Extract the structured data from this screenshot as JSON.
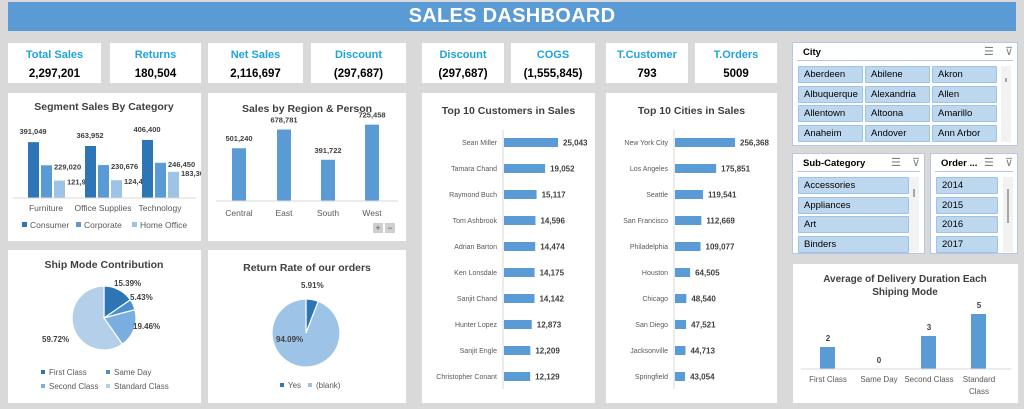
{
  "header": {
    "title": "SALES DASHBOARD"
  },
  "kpis": [
    {
      "label": "Total Sales",
      "value": "2,297,201"
    },
    {
      "label": "Returns",
      "value": "180,504"
    },
    {
      "label": "Net Sales",
      "value": "2,116,697"
    },
    {
      "label": "Discount",
      "value": "(297,687)"
    },
    {
      "label": "Discount",
      "value": "(297,687)"
    },
    {
      "label": "COGS",
      "value": "(1,555,845)"
    },
    {
      "label": "T.Customer",
      "value": "793"
    },
    {
      "label": "T.Orders",
      "value": "5009"
    }
  ],
  "colors": {
    "accent": "#5b9bd5",
    "dark_blue": "#2e75b6",
    "mid_blue": "#5b9bd5",
    "light_blue": "#9dc3e6",
    "kpi_label": "#1fa3dc"
  },
  "chart_data": [
    {
      "id": "segment",
      "type": "bar",
      "title": "Segment Sales By Category",
      "categories": [
        "Furniture",
        "Office Supplies",
        "Technology"
      ],
      "series": [
        {
          "name": "Consumer",
          "values": [
            391049,
            363952,
            406400
          ],
          "labels": [
            "391,049",
            "363,952",
            "406,400"
          ]
        },
        {
          "name": "Corporate",
          "values": [
            229020,
            230676,
            246450
          ],
          "labels": [
            "229,020",
            "230,676",
            "246,450"
          ]
        },
        {
          "name": "Home Office",
          "values": [
            121931,
            124418,
            183304
          ],
          "labels": [
            "121,931",
            "124,418",
            "183,304"
          ]
        }
      ],
      "legend": "bottom"
    },
    {
      "id": "region",
      "type": "bar",
      "title": "Sales by Region & Person",
      "categories": [
        "Central",
        "East",
        "South",
        "West"
      ],
      "values": [
        501240,
        678781,
        391722,
        725458
      ],
      "labels": [
        "501,240",
        "678,781",
        "391,722",
        "725,458"
      ]
    },
    {
      "id": "customers",
      "type": "bar",
      "orientation": "horizontal",
      "title": "Top 10 Customers in Sales",
      "categories": [
        "Sean Miller",
        "Tamara Chand",
        "Raymond Buch",
        "Tom Ashbrook",
        "Adrian Barton",
        "Ken Lonsdale",
        "Sanjit Chand",
        "Hunter Lopez",
        "Sanjit Engle",
        "Christopher Conant"
      ],
      "values": [
        25043,
        19052,
        15117,
        14596,
        14474,
        14175,
        14142,
        12873,
        12209,
        12129
      ],
      "labels": [
        "25,043",
        "19,052",
        "15,117",
        "14,596",
        "14,474",
        "14,175",
        "14,142",
        "12,873",
        "12,209",
        "12,129"
      ]
    },
    {
      "id": "cities",
      "type": "bar",
      "orientation": "horizontal",
      "title": "Top 10 Cities in Sales",
      "categories": [
        "New York City",
        "Los Angeles",
        "Seattle",
        "San Francisco",
        "Philadelphia",
        "Houston",
        "Chicago",
        "San Diego",
        "Jacksonville",
        "Springfield"
      ],
      "values": [
        256368,
        175851,
        119541,
        112669,
        109077,
        64505,
        48540,
        47521,
        44713,
        43054
      ],
      "labels": [
        "256,368",
        "175,851",
        "119,541",
        "112,669",
        "109,077",
        "64,505",
        "48,540",
        "47,521",
        "44,713",
        "43,054"
      ]
    },
    {
      "id": "shipmode",
      "type": "pie",
      "title": "Ship Mode Contribution",
      "categories": [
        "First Class",
        "Same Day",
        "Second Class",
        "Standard Class"
      ],
      "values": [
        15.39,
        5.43,
        19.46,
        59.72
      ],
      "labels": [
        "15.39%",
        "5.43%",
        "19.46%",
        "59.72%"
      ],
      "legend": "bottom"
    },
    {
      "id": "returnrate",
      "type": "pie",
      "title": "Return Rate of our orders",
      "categories": [
        "Yes",
        "(blank)"
      ],
      "values": [
        5.91,
        94.09
      ],
      "labels": [
        "5.91%",
        "94.09%"
      ],
      "legend": "bottom"
    },
    {
      "id": "delivery",
      "type": "bar",
      "title": "Average of Delivery Duration Each Shiping Mode",
      "title_lines": [
        "Average of Delivery Duration Each",
        "Shiping Mode"
      ],
      "categories": [
        "First Class",
        "Same Day",
        "Second Class",
        "Standard Class"
      ],
      "category_lines": [
        [
          "First Class"
        ],
        [
          "Same Day"
        ],
        [
          "Second Class"
        ],
        [
          "Standard",
          "Class"
        ]
      ],
      "values": [
        2,
        0,
        3,
        5
      ],
      "labels": [
        "2",
        "0",
        "3",
        "5"
      ]
    }
  ],
  "zoom_controls": {
    "plus": "+",
    "minus": "−"
  },
  "slicers": {
    "city": {
      "title": "City",
      "items": [
        "Aberdeen",
        "Abilene",
        "Akron",
        "Albuquerque",
        "Alexandria",
        "Allen",
        "Allentown",
        "Altoona",
        "Amarillo",
        "Anaheim",
        "Andover",
        "Ann Arbor"
      ]
    },
    "subcategory": {
      "title": "Sub-Category",
      "items": [
        "Accessories",
        "Appliances",
        "Art",
        "Binders"
      ]
    },
    "order": {
      "title": "Order ...",
      "items": [
        "2014",
        "2015",
        "2016",
        "2017"
      ]
    },
    "icons": {
      "multiselect": "☰",
      "clear_filter": "⊽"
    }
  }
}
